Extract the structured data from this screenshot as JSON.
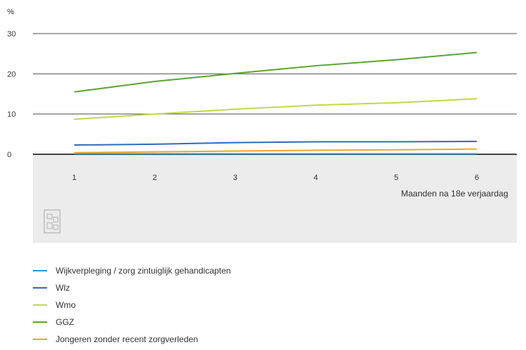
{
  "chart_data": {
    "type": "line",
    "unit_label": "%",
    "xlabel": "Maanden na 18e verjaardag",
    "ylabel": "",
    "x": [
      1,
      2,
      3,
      4,
      5,
      6
    ],
    "ylim": [
      0,
      30
    ],
    "yticks": [
      0,
      10,
      20,
      30
    ],
    "grid": true,
    "legend_position": "bottom",
    "series": [
      {
        "name": "Wijkverpleging / zorg zintuiglijk gehandicapten",
        "color": "#1aa0d6",
        "values": [
          0.1,
          0.1,
          0.1,
          0.1,
          0.1,
          0.1
        ]
      },
      {
        "name": "Wlz",
        "color": "#2f6cc0",
        "values": [
          2.3,
          2.5,
          2.9,
          3.1,
          3.1,
          3.2
        ]
      },
      {
        "name": "Wmo",
        "color": "#c2d946",
        "values": [
          8.7,
          10.0,
          11.2,
          12.2,
          12.8,
          13.8
        ]
      },
      {
        "name": "GGZ",
        "color": "#5aa632",
        "values": [
          15.5,
          18.1,
          20.1,
          22.0,
          23.5,
          25.3
        ]
      },
      {
        "name": "Jongeren zonder recent zorgverleden",
        "color": "#f5a623",
        "values": [
          0.4,
          0.6,
          0.8,
          1.0,
          1.1,
          1.3
        ]
      }
    ]
  }
}
